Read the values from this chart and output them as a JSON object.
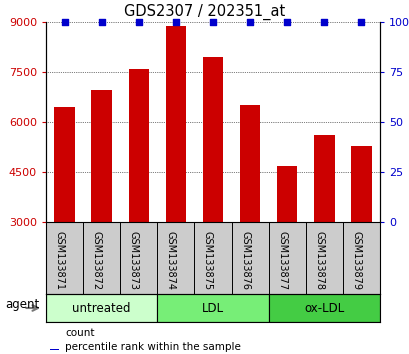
{
  "title": "GDS2307 / 202351_at",
  "samples": [
    "GSM133871",
    "GSM133872",
    "GSM133873",
    "GSM133874",
    "GSM133875",
    "GSM133876",
    "GSM133877",
    "GSM133878",
    "GSM133879"
  ],
  "counts": [
    6450,
    6950,
    7580,
    8870,
    7950,
    6500,
    4680,
    5620,
    5280
  ],
  "percentiles": [
    100,
    100,
    100,
    100,
    100,
    100,
    100,
    100,
    100
  ],
  "ylim_left": [
    3000,
    9000
  ],
  "yticks_left": [
    3000,
    4500,
    6000,
    7500,
    9000
  ],
  "ylim_right": [
    0,
    100
  ],
  "yticks_right": [
    0,
    25,
    50,
    75,
    100
  ],
  "bar_color": "#cc0000",
  "dot_color": "#0000cc",
  "groups": [
    {
      "label": "untreated",
      "indices": [
        0,
        1,
        2
      ],
      "color": "#ccffcc"
    },
    {
      "label": "LDL",
      "indices": [
        3,
        4,
        5
      ],
      "color": "#77ee77"
    },
    {
      "label": "ox-LDL",
      "indices": [
        6,
        7,
        8
      ],
      "color": "#44cc44"
    }
  ],
  "legend_count_color": "#cc0000",
  "legend_pct_color": "#0000cc",
  "xlabel_color": "#cc0000",
  "ylabel_right_color": "#0000cc",
  "tick_cell_color": "#cccccc",
  "bar_width": 0.55
}
